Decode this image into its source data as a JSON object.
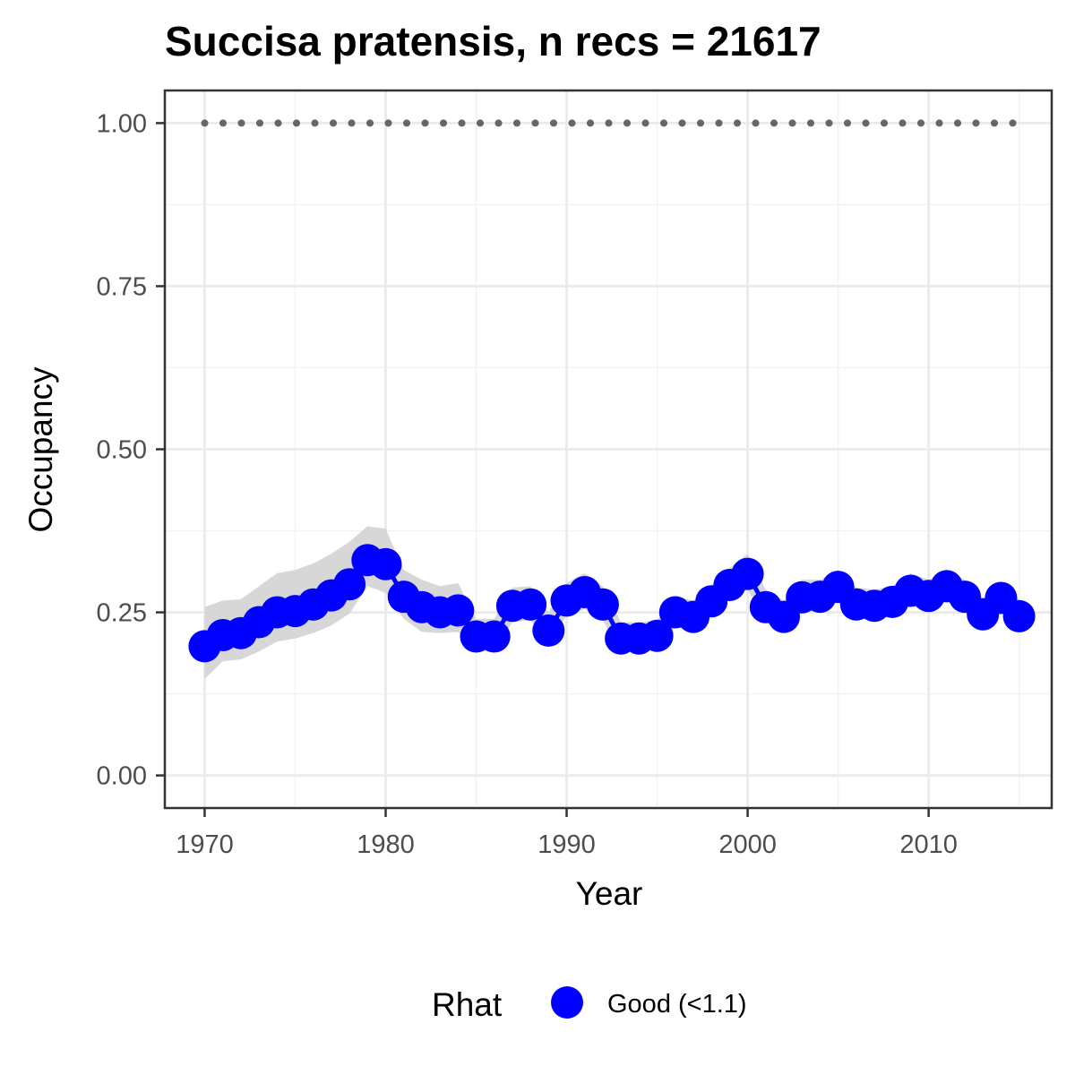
{
  "chart_data": {
    "type": "line",
    "title": "Succisa pratensis, n recs = 21617",
    "xlabel": "Year",
    "ylabel": "Occupancy",
    "xlim": [
      1967.8,
      2016.8
    ],
    "ylim": [
      -0.05,
      1.05
    ],
    "x_ticks": [
      1970,
      1980,
      1990,
      2000,
      2010
    ],
    "x_tick_labels": [
      "1970",
      "1980",
      "1990",
      "2000",
      "2010"
    ],
    "y_ticks": [
      0,
      0.25,
      0.5,
      0.75,
      1
    ],
    "y_tick_labels": [
      "0.00",
      "0.25",
      "0.50",
      "0.75",
      "1.00"
    ],
    "grid": true,
    "legend": {
      "title": "Rhat",
      "position": "bottom",
      "entries": [
        {
          "label": "Good (<1.1)",
          "color": "#0000ff"
        }
      ]
    },
    "x": [
      1970,
      1971,
      1972,
      1973,
      1974,
      1975,
      1976,
      1977,
      1978,
      1979,
      1980,
      1981,
      1982,
      1983,
      1984,
      1985,
      1986,
      1987,
      1988,
      1989,
      1990,
      1991,
      1992,
      1993,
      1994,
      1995,
      1996,
      1997,
      1998,
      1999,
      2000,
      2001,
      2002,
      2003,
      2004,
      2005,
      2006,
      2007,
      2008,
      2009,
      2010,
      2011,
      2012,
      2013,
      2014,
      2015
    ],
    "series": [
      {
        "values": [
          0.198,
          0.215,
          0.218,
          0.235,
          0.25,
          0.252,
          0.262,
          0.276,
          0.293,
          0.33,
          0.324,
          0.274,
          0.258,
          0.25,
          0.253,
          0.213,
          0.213,
          0.26,
          0.262,
          0.222,
          0.268,
          0.281,
          0.262,
          0.21,
          0.21,
          0.214,
          0.25,
          0.243,
          0.267,
          0.292,
          0.309,
          0.258,
          0.243,
          0.273,
          0.274,
          0.289,
          0.262,
          0.26,
          0.266,
          0.283,
          0.275,
          0.29,
          0.274,
          0.247,
          0.272,
          0.244
        ],
        "lower": [
          0.148,
          0.175,
          0.178,
          0.19,
          0.205,
          0.21,
          0.218,
          0.23,
          0.248,
          0.29,
          0.28,
          0.24,
          0.22,
          0.218,
          0.22,
          0.19,
          0.19,
          0.235,
          0.238,
          0.2,
          0.245,
          0.255,
          0.238,
          0.19,
          0.19,
          0.195,
          0.228,
          0.222,
          0.245,
          0.27,
          0.285,
          0.235,
          0.222,
          0.25,
          0.252,
          0.266,
          0.24,
          0.238,
          0.244,
          0.26,
          0.252,
          0.266,
          0.25,
          0.225,
          0.25,
          0.22
        ],
        "upper": [
          0.258,
          0.268,
          0.27,
          0.29,
          0.31,
          0.315,
          0.325,
          0.34,
          0.358,
          0.382,
          0.378,
          0.315,
          0.3,
          0.29,
          0.295,
          0.24,
          0.24,
          0.288,
          0.29,
          0.25,
          0.295,
          0.31,
          0.29,
          0.235,
          0.235,
          0.238,
          0.275,
          0.268,
          0.292,
          0.318,
          0.34,
          0.285,
          0.268,
          0.3,
          0.3,
          0.315,
          0.288,
          0.285,
          0.29,
          0.31,
          0.3,
          0.316,
          0.3,
          0.272,
          0.298,
          0.27
        ],
        "color": "#0000ff",
        "ribbon_color": "#d3d3d3"
      }
    ],
    "reference_line": {
      "y": 1.0,
      "x_from": 1970,
      "x_to": 2015,
      "style": "dotted",
      "color": "#666666"
    }
  }
}
